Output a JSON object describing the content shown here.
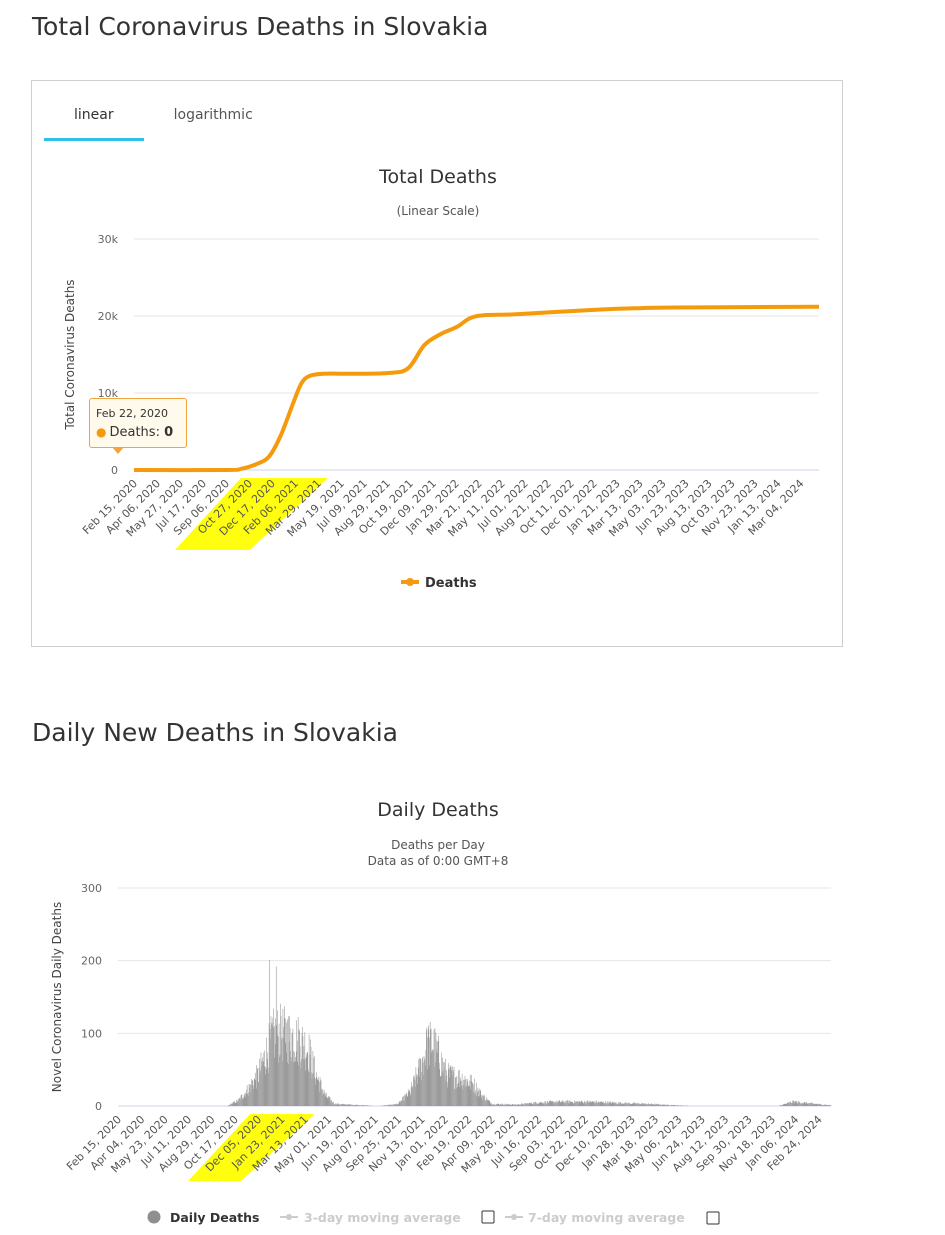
{
  "sections": [
    {
      "title": "Total Coronavirus Deaths in Slovakia"
    },
    {
      "title": "Daily New Deaths in Slovakia"
    }
  ],
  "tabs": [
    {
      "label": "linear",
      "active": true
    },
    {
      "label": "logarithmic",
      "active": false
    }
  ],
  "tooltip": {
    "date": "Feb 22, 2020",
    "label": "Deaths:",
    "value": "0"
  },
  "colors": {
    "deaths_line": "#f59a0d",
    "daily_bars": "#9a9a9a",
    "highlight": "#ffff00",
    "tab_accent": "#2ec0e8"
  },
  "chart_data": [
    {
      "type": "line",
      "title": "Total Deaths",
      "subtitle": "(Linear Scale)",
      "xlabel": "",
      "ylabel": "Total Coronavirus Deaths",
      "ylim": [
        0,
        30000
      ],
      "yticks": [
        {
          "value": 0,
          "label": "0"
        },
        {
          "value": 10000,
          "label": "10k"
        },
        {
          "value": 20000,
          "label": "20k"
        },
        {
          "value": 30000,
          "label": "30k"
        }
      ],
      "x_range": [
        "2020-02-15",
        "2024-04-14"
      ],
      "x_ticks": [
        "Feb 15, 2020",
        "Apr 06, 2020",
        "May 27, 2020",
        "Jul 17, 2020",
        "Sep 06, 2020",
        "Oct 27, 2020",
        "Dec 17, 2020",
        "Feb 06, 2021",
        "Mar 29, 2021",
        "May 19, 2021",
        "Jul 09, 2021",
        "Aug 29, 2021",
        "Oct 19, 2021",
        "Dec 09, 2021",
        "Jan 29, 2022",
        "Mar 21, 2022",
        "May 11, 2022",
        "Jul 01, 2022",
        "Aug 21, 2022",
        "Oct 11, 2022",
        "Dec 01, 2022",
        "Jan 21, 2023",
        "Mar 13, 2023",
        "May 03, 2023",
        "Jun 23, 2023",
        "Aug 13, 2023",
        "Oct 03, 2023",
        "Nov 23, 2023",
        "Jan 13, 2024",
        "Mar 04, 2024"
      ],
      "x_ticks_highlighted": [
        "Oct 27, 2020",
        "Dec 17, 2020",
        "Feb 06, 2021",
        "Mar 29, 2021"
      ],
      "legend": [
        "Deaths"
      ],
      "legend_position": "bottom-center",
      "grid": true,
      "series": [
        {
          "name": "Deaths",
          "points": [
            [
              "2020-02-15",
              0
            ],
            [
              "2020-09-06",
              0
            ],
            [
              "2020-10-10",
              150
            ],
            [
              "2020-11-10",
              700
            ],
            [
              "2020-12-10",
              1700
            ],
            [
              "2021-01-05",
              4400
            ],
            [
              "2021-02-01",
              8500
            ],
            [
              "2021-02-20",
              11200
            ],
            [
              "2021-03-10",
              12200
            ],
            [
              "2021-04-10",
              12500
            ],
            [
              "2021-06-01",
              12500
            ],
            [
              "2021-09-01",
              12600
            ],
            [
              "2021-10-15",
              13200
            ],
            [
              "2021-11-20",
              16200
            ],
            [
              "2021-12-25",
              17600
            ],
            [
              "2022-02-01",
              18600
            ],
            [
              "2022-03-01",
              19700
            ],
            [
              "2022-04-01",
              20100
            ],
            [
              "2022-06-01",
              20200
            ],
            [
              "2022-09-01",
              20500
            ],
            [
              "2022-12-01",
              20800
            ],
            [
              "2023-03-01",
              21000
            ],
            [
              "2023-06-01",
              21100
            ],
            [
              "2024-04-14",
              21200
            ]
          ]
        }
      ]
    },
    {
      "type": "bar",
      "title": "Daily Deaths",
      "subtitle": "Deaths per Day",
      "subtitle2": "Data as of 0:00 GMT+8",
      "xlabel": "",
      "ylabel": "Novel Coronavirus Daily Deaths",
      "ylim": [
        0,
        300
      ],
      "yticks": [
        {
          "value": 0,
          "label": "0"
        },
        {
          "value": 100,
          "label": "100"
        },
        {
          "value": 200,
          "label": "200"
        },
        {
          "value": 300,
          "label": "300"
        }
      ],
      "x_range": [
        "2020-02-15",
        "2024-03-21"
      ],
      "x_ticks": [
        "Feb 15, 2020",
        "Apr 04, 2020",
        "May 23, 2020",
        "Jul 11, 2020",
        "Aug 29, 2020",
        "Oct 17, 2020",
        "Dec 05, 2020",
        "Jan 23, 2021",
        "Mar 13, 2021",
        "May 01, 2021",
        "Jun 19, 2021",
        "Aug 07, 2021",
        "Sep 25, 2021",
        "Nov 13, 2021",
        "Jan 01, 2022",
        "Feb 19, 2022",
        "Apr 09, 2022",
        "May 28, 2022",
        "Jul 16, 2022",
        "Sep 03, 2022",
        "Oct 22, 2022",
        "Dec 10, 2022",
        "Jan 28, 2023",
        "Mar 18, 2023",
        "May 06, 2023",
        "Jun 24, 2023",
        "Aug 12, 2023",
        "Sep 30, 2023",
        "Nov 18, 2023",
        "Jan 06, 2024",
        "Feb 24, 2024"
      ],
      "x_ticks_highlighted": [
        "Dec 05, 2020",
        "Jan 23, 2021",
        "Mar 13, 2021"
      ],
      "legend": [
        {
          "label": "Daily Deaths",
          "active": true
        },
        {
          "label": "3-day moving average",
          "active": false
        },
        {
          "label": "7-day moving average",
          "active": false
        }
      ],
      "legend_position": "bottom-center",
      "grid": true,
      "series": [
        {
          "name": "Daily Deaths",
          "profile": [
            [
              "2020-02-15",
              0
            ],
            [
              "2020-10-01",
              0
            ],
            [
              "2020-10-25",
              8
            ],
            [
              "2020-11-15",
              25
            ],
            [
              "2020-12-05",
              45
            ],
            [
              "2020-12-25",
              80
            ],
            [
              "2021-01-05",
              100
            ],
            [
              "2021-01-20",
              105
            ],
            [
              "2021-02-10",
              100
            ],
            [
              "2021-03-01",
              95
            ],
            [
              "2021-03-20",
              82
            ],
            [
              "2021-04-05",
              45
            ],
            [
              "2021-04-25",
              15
            ],
            [
              "2021-05-15",
              3
            ],
            [
              "2021-08-15",
              0
            ],
            [
              "2021-09-25",
              3
            ],
            [
              "2021-10-20",
              20
            ],
            [
              "2021-11-10",
              55
            ],
            [
              "2021-11-25",
              85
            ],
            [
              "2021-12-05",
              92
            ],
            [
              "2021-12-20",
              70
            ],
            [
              "2022-01-05",
              45
            ],
            [
              "2022-02-05",
              40
            ],
            [
              "2022-03-01",
              32
            ],
            [
              "2022-03-20",
              15
            ],
            [
              "2022-04-10",
              3
            ],
            [
              "2022-06-01",
              2
            ],
            [
              "2022-07-15",
              5
            ],
            [
              "2022-09-01",
              6
            ],
            [
              "2022-11-01",
              6
            ],
            [
              "2023-01-15",
              4
            ],
            [
              "2023-03-01",
              3
            ],
            [
              "2023-05-01",
              1
            ],
            [
              "2023-06-15",
              0
            ],
            [
              "2023-12-01",
              0
            ],
            [
              "2024-01-01",
              6
            ],
            [
              "2024-02-01",
              4
            ],
            [
              "2024-03-21",
              1
            ]
          ]
        },
        {
          "name": "Daily Deaths (peaks)",
          "points": [
            [
              "2020-12-29",
              201
            ],
            [
              "2021-01-12",
              192
            ],
            [
              "2021-01-22",
              124
            ],
            [
              "2021-02-05",
              119
            ],
            [
              "2021-01-03",
              115
            ],
            [
              "2021-11-28",
              111
            ],
            [
              "2021-11-24",
              108
            ]
          ]
        }
      ]
    }
  ]
}
